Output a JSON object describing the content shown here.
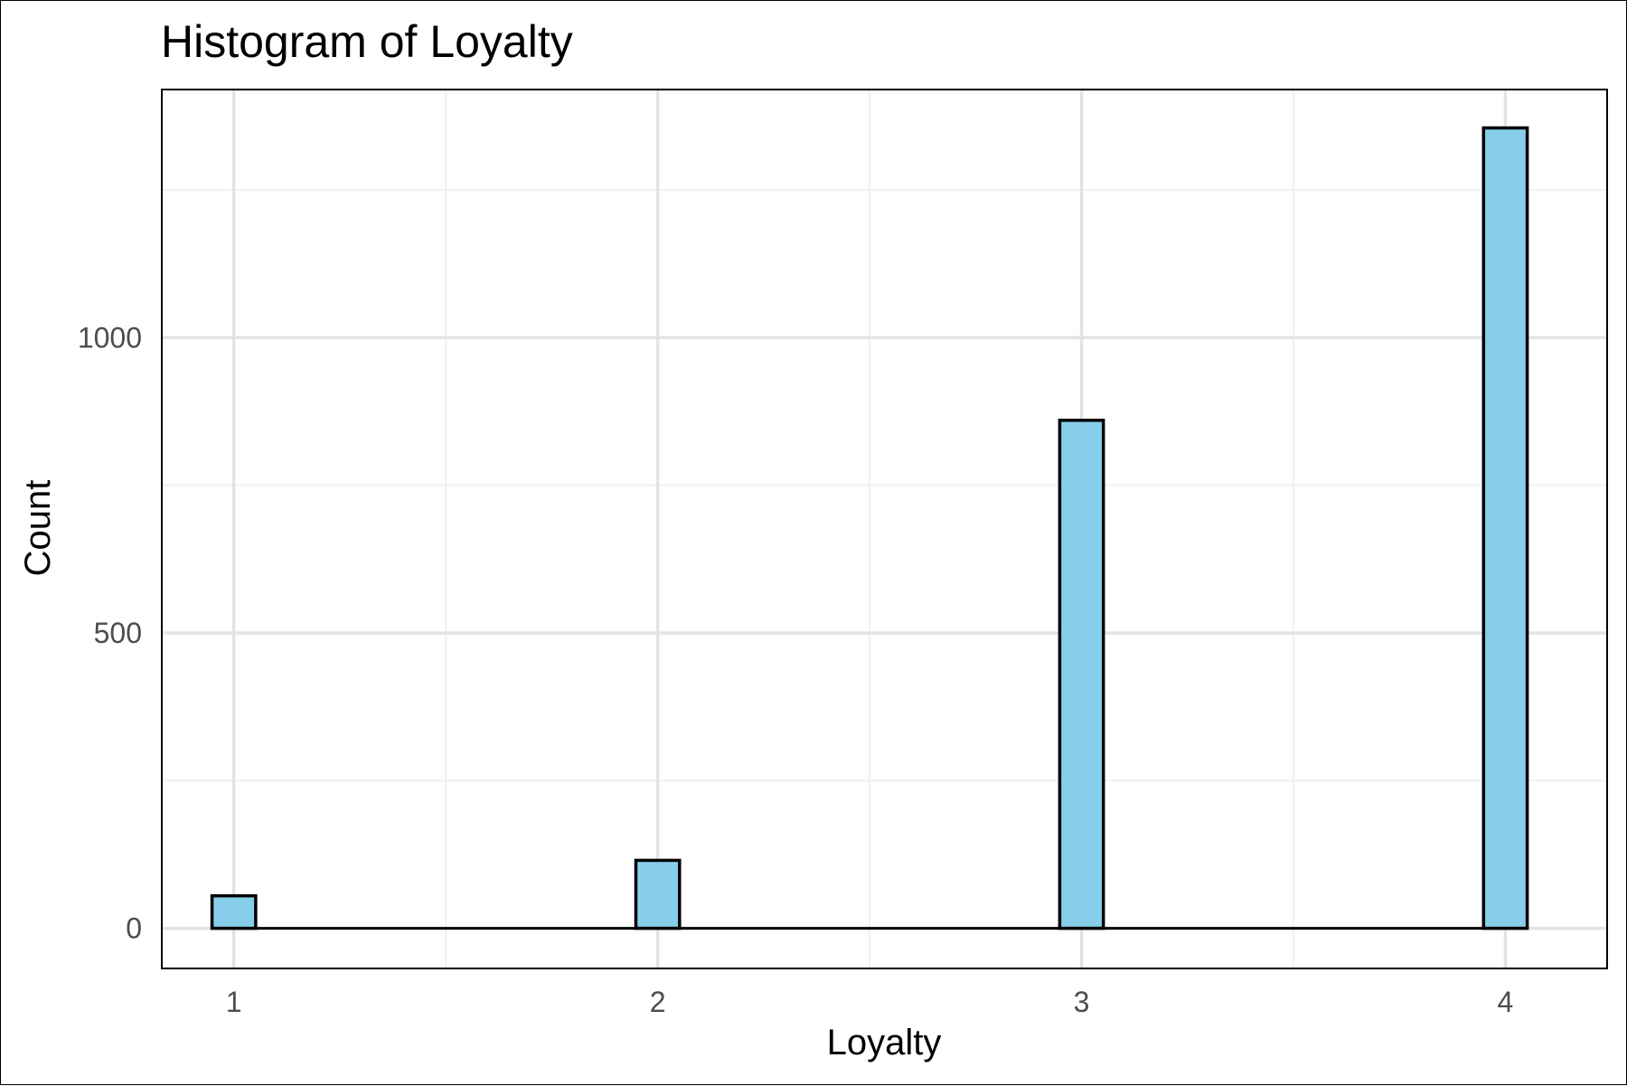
{
  "chart_data": {
    "type": "bar",
    "title": "Histogram of Loyalty",
    "xlabel": "Loyalty",
    "ylabel": "Count",
    "x": [
      1,
      2,
      3,
      4
    ],
    "values": [
      55,
      115,
      860,
      1355
    ],
    "x_ticks": [
      "1",
      "2",
      "3",
      "4"
    ],
    "y_ticks": [
      "0",
      "500",
      "1000"
    ],
    "y_tick_values": [
      0,
      500,
      1000
    ],
    "xlim": [
      0.83,
      4.24
    ],
    "ylim": [
      -68,
      1420
    ],
    "bin_width": 0.103,
    "grid": true,
    "legend": "none",
    "bar_fill": "#87ceeb",
    "bar_outline": "#000000"
  }
}
